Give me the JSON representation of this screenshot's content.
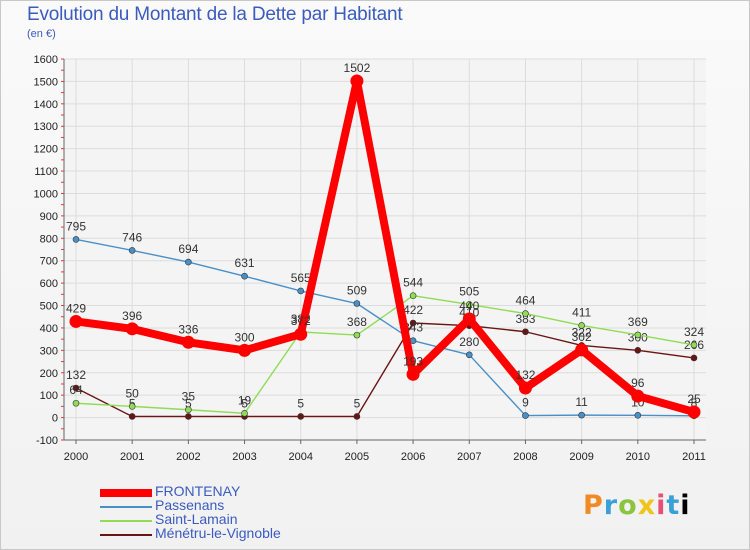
{
  "chart_data": {
    "type": "line",
    "title": "Evolution du Montant de la Dette par Habitant",
    "subtitle": "(en €)",
    "categories": [
      "2000",
      "2001",
      "2002",
      "2003",
      "2004",
      "2005",
      "2006",
      "2007",
      "2008",
      "2009",
      "2010",
      "2011"
    ],
    "ylim": [
      -100,
      1600
    ],
    "yticks": [
      -100,
      0,
      100,
      200,
      300,
      400,
      500,
      600,
      700,
      800,
      900,
      1000,
      1100,
      1200,
      1300,
      1400,
      1500,
      1600
    ],
    "grid": true,
    "legend_position": "bottom-left",
    "series": [
      {
        "name": "Ménétru-le-Vignoble",
        "color": "#6b1414",
        "values": [
          132,
          5,
          5,
          5,
          5,
          5,
          422,
          410,
          383,
          322,
          300,
          266
        ]
      },
      {
        "name": "Saint-Lamain",
        "color": "#8fdc55",
        "values": [
          64,
          50,
          35,
          19,
          382,
          368,
          544,
          505,
          464,
          411,
          369,
          324
        ]
      },
      {
        "name": "Passenans",
        "color": "#4a90c8",
        "values": [
          795,
          746,
          694,
          631,
          565,
          509,
          343,
          280,
          9,
          11,
          10,
          8
        ]
      },
      {
        "name": "FRONTENAY",
        "color": "#ff0000",
        "values": [
          429,
          396,
          336,
          300,
          372,
          1502,
          193,
          440,
          132,
          302,
          96,
          25
        ]
      }
    ]
  },
  "legend": [
    {
      "name": "FRONTENAY",
      "color": "#ff0000"
    },
    {
      "name": "Passenans",
      "color": "#4a90c8"
    },
    {
      "name": "Saint-Lamain",
      "color": "#8fdc55"
    },
    {
      "name": "Ménétru-le-Vignoble",
      "color": "#6b1414"
    }
  ],
  "logo": {
    "letters": [
      "P",
      "r",
      "o",
      "x",
      "i",
      "t",
      "i"
    ]
  }
}
